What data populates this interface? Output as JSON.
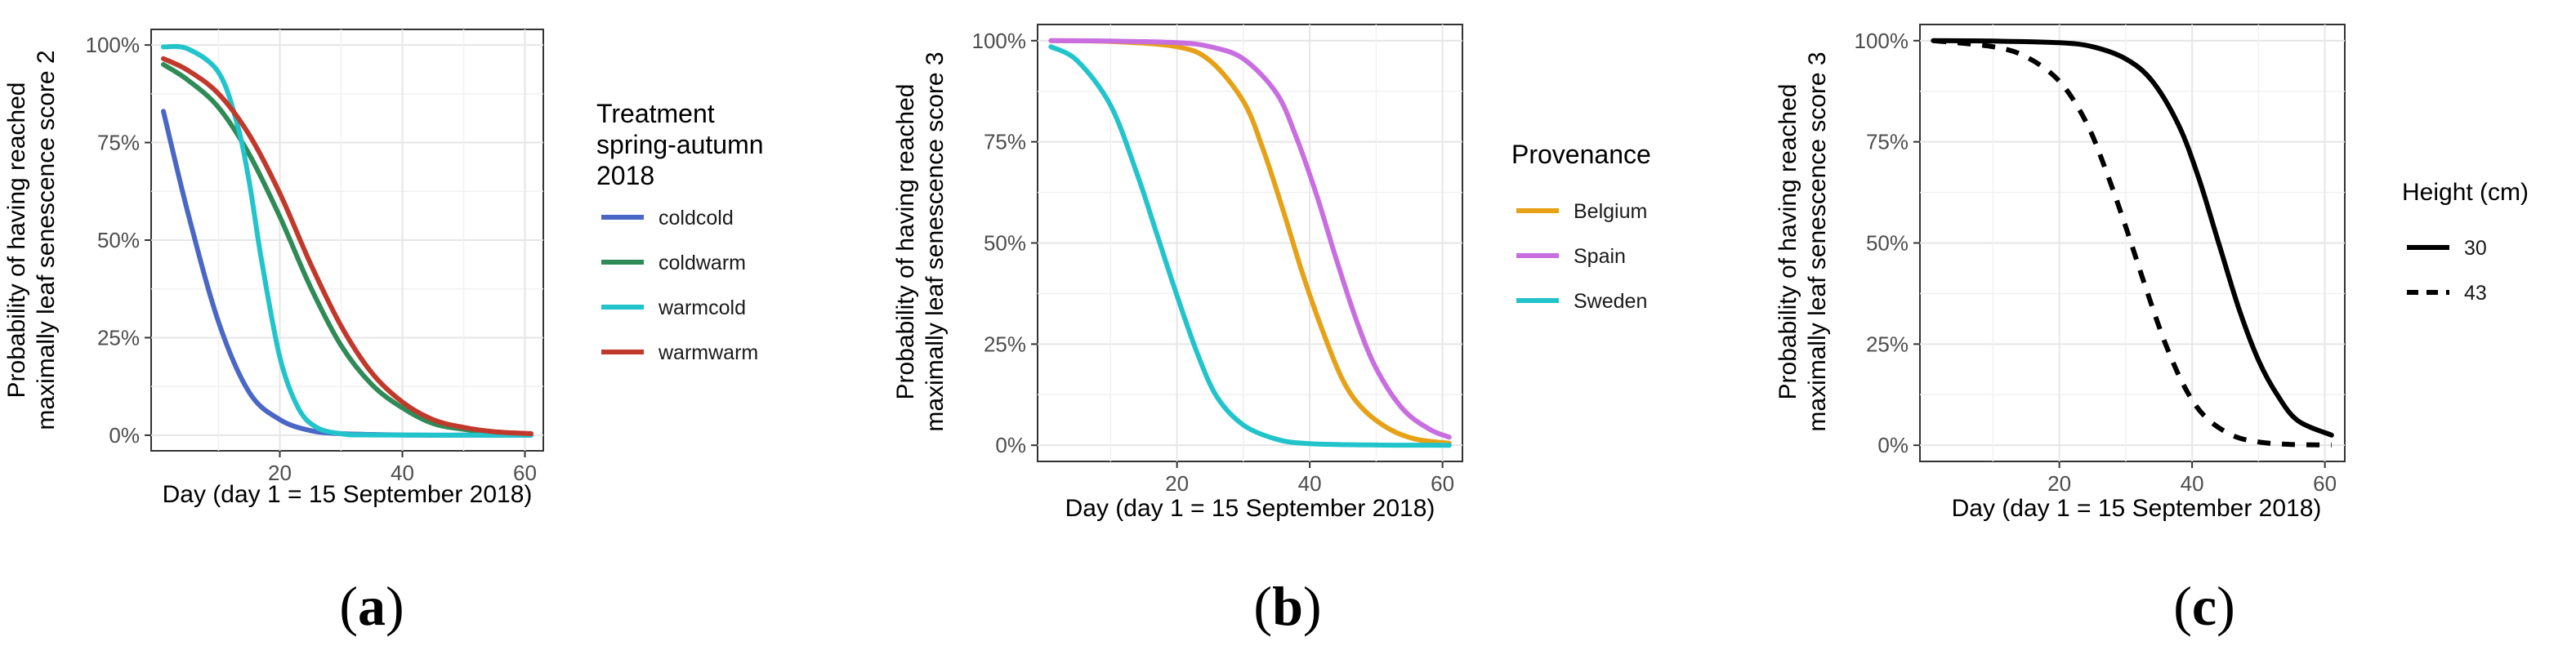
{
  "figure": {
    "captions": [
      "(a)",
      "(b)",
      "(c)"
    ],
    "caption_letters": [
      "a",
      "b",
      "c"
    ]
  },
  "chart_data": [
    {
      "id": "a",
      "type": "line",
      "caption": "(a)",
      "xlabel": "Day (day 1 = 15 September 2018)",
      "ylabel_lines": [
        "Probability of having reached",
        "maximally leaf senescence score 2"
      ],
      "xlim": [
        -1,
        63
      ],
      "ylim": [
        -0.04,
        1.04
      ],
      "x_ticks": [
        20,
        40,
        60
      ],
      "x_tick_labels": [
        "20",
        "40",
        "60"
      ],
      "y_ticks": [
        0,
        0.25,
        0.5,
        0.75,
        1.0
      ],
      "y_tick_labels": [
        "0%",
        "25%",
        "50%",
        "75%",
        "100%"
      ],
      "grid": true,
      "legend_title_lines": [
        "Treatment",
        "spring-autumn",
        "2018"
      ],
      "legend_position": "right",
      "series": [
        {
          "name": "coldcold",
          "color": "#4a67c6",
          "dash": "solid",
          "x": [
            1,
            5,
            10,
            15,
            20,
            25,
            30,
            40,
            50,
            61
          ],
          "y": [
            0.83,
            0.57,
            0.29,
            0.11,
            0.04,
            0.012,
            0.004,
            0.0005,
            0.0001,
            0.0
          ]
        },
        {
          "name": "coldwarm",
          "color": "#2e8b57",
          "dash": "solid",
          "x": [
            1,
            5,
            10,
            15,
            20,
            25,
            30,
            35,
            40,
            45,
            50,
            55,
            61
          ],
          "y": [
            0.95,
            0.91,
            0.84,
            0.72,
            0.56,
            0.38,
            0.23,
            0.13,
            0.07,
            0.03,
            0.015,
            0.007,
            0.003
          ]
        },
        {
          "name": "warmcold",
          "color": "#22c4cc",
          "dash": "solid",
          "x": [
            1,
            5,
            10,
            13,
            15,
            17,
            20,
            23,
            26,
            30,
            35,
            61
          ],
          "y": [
            0.995,
            0.99,
            0.93,
            0.8,
            0.65,
            0.45,
            0.2,
            0.07,
            0.02,
            0.004,
            0.0005,
            0.0
          ]
        },
        {
          "name": "warmwarm",
          "color": "#c0392b",
          "dash": "solid",
          "x": [
            1,
            5,
            10,
            15,
            20,
            25,
            30,
            35,
            40,
            45,
            50,
            55,
            61
          ],
          "y": [
            0.965,
            0.935,
            0.875,
            0.77,
            0.62,
            0.44,
            0.28,
            0.16,
            0.085,
            0.04,
            0.02,
            0.009,
            0.004
          ]
        }
      ]
    },
    {
      "id": "b",
      "type": "line",
      "caption": "(b)",
      "xlabel": "Day (day 1 = 15 September 2018)",
      "ylabel_lines": [
        "Probability of having reached",
        "maximally leaf senescence score 3"
      ],
      "xlim": [
        -1,
        63
      ],
      "ylim": [
        -0.04,
        1.04
      ],
      "x_ticks": [
        20,
        40,
        60
      ],
      "x_tick_labels": [
        "20",
        "40",
        "60"
      ],
      "y_ticks": [
        0,
        0.25,
        0.5,
        0.75,
        1.0
      ],
      "y_tick_labels": [
        "0%",
        "25%",
        "50%",
        "75%",
        "100%"
      ],
      "grid": true,
      "legend_title_lines": [
        "Provenance"
      ],
      "legend_position": "right",
      "series": [
        {
          "name": "Belgium",
          "color": "#e6a117",
          "dash": "solid",
          "x": [
            1,
            10,
            20,
            25,
            30,
            33,
            36,
            39,
            42,
            45,
            48,
            52,
            56,
            61
          ],
          "y": [
            1.0,
            0.998,
            0.985,
            0.95,
            0.85,
            0.73,
            0.58,
            0.42,
            0.28,
            0.16,
            0.09,
            0.04,
            0.015,
            0.005
          ]
        },
        {
          "name": "Spain",
          "color": "#c86ee0",
          "dash": "solid",
          "x": [
            1,
            10,
            20,
            25,
            30,
            35,
            38,
            41,
            44,
            47,
            50,
            54,
            58,
            61
          ],
          "y": [
            1.0,
            0.999,
            0.995,
            0.985,
            0.955,
            0.87,
            0.76,
            0.62,
            0.46,
            0.31,
            0.19,
            0.09,
            0.04,
            0.02
          ]
        },
        {
          "name": "Sweden",
          "color": "#22c4cc",
          "dash": "solid",
          "x": [
            1,
            5,
            10,
            14,
            17,
            20,
            23,
            26,
            30,
            35,
            40,
            50,
            61
          ],
          "y": [
            0.985,
            0.95,
            0.84,
            0.67,
            0.52,
            0.37,
            0.23,
            0.12,
            0.05,
            0.015,
            0.004,
            0.0005,
            0.0
          ]
        }
      ]
    },
    {
      "id": "c",
      "type": "line",
      "caption": "(c)",
      "xlabel": "Day (day 1 = 15 September 2018)",
      "ylabel_lines": [
        "Probability of having reached",
        "maximally leaf senescence score 3"
      ],
      "xlim": [
        -1,
        63
      ],
      "ylim": [
        -0.04,
        1.04
      ],
      "x_ticks": [
        20,
        40,
        60
      ],
      "x_tick_labels": [
        "20",
        "40",
        "60"
      ],
      "y_ticks": [
        0,
        0.25,
        0.5,
        0.75,
        1.0
      ],
      "y_tick_labels": [
        "0%",
        "25%",
        "50%",
        "75%",
        "100%"
      ],
      "grid": true,
      "legend_title_lines": [
        "Height (cm)"
      ],
      "legend_position": "right",
      "series": [
        {
          "name": "30",
          "color": "#000000",
          "dash": "solid",
          "x": [
            1,
            10,
            20,
            25,
            30,
            34,
            38,
            41,
            44,
            47,
            50,
            53,
            56,
            61
          ],
          "y": [
            1.0,
            0.999,
            0.995,
            0.985,
            0.955,
            0.9,
            0.79,
            0.66,
            0.5,
            0.34,
            0.21,
            0.12,
            0.06,
            0.025
          ]
        },
        {
          "name": "43",
          "color": "#000000",
          "dash": "dashed",
          "x": [
            1,
            10,
            15,
            20,
            24,
            27,
            30,
            33,
            36,
            39,
            42,
            46,
            50,
            55,
            61
          ],
          "y": [
            1.0,
            0.985,
            0.96,
            0.9,
            0.8,
            0.68,
            0.54,
            0.39,
            0.25,
            0.14,
            0.07,
            0.025,
            0.008,
            0.002,
            0.0005
          ]
        }
      ]
    }
  ]
}
